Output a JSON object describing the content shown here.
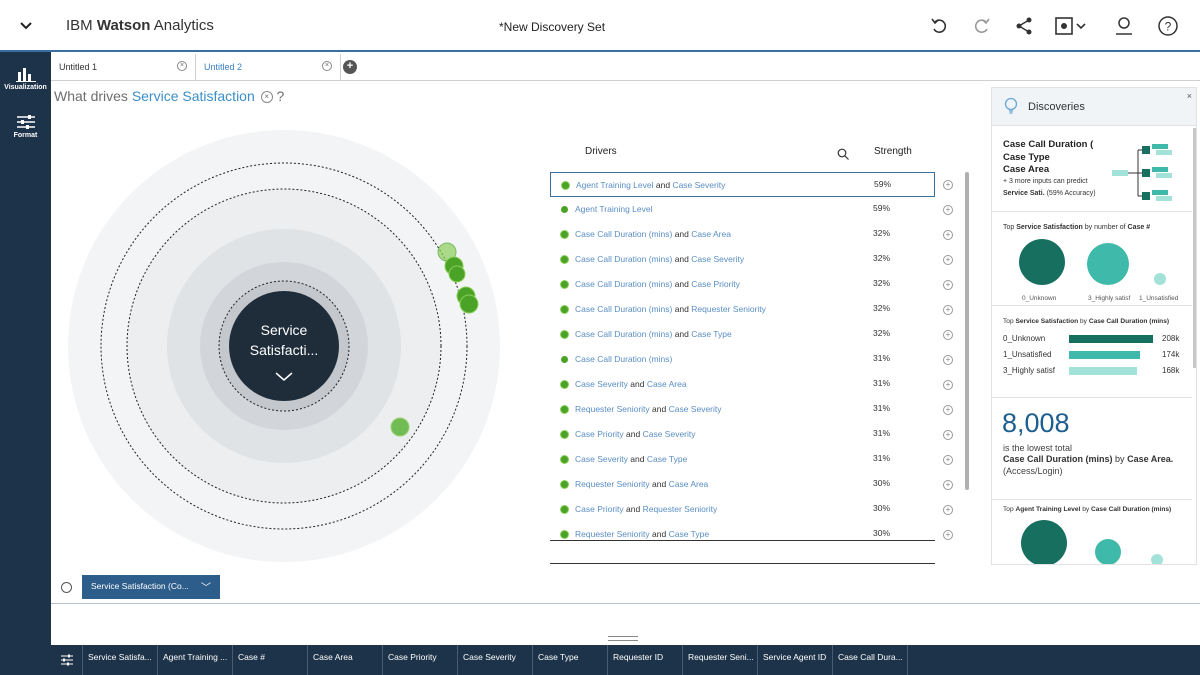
{
  "app": {
    "brand_prefix": "IBM",
    "brand_bold": "Watson",
    "brand_suffix": "Analytics",
    "doc_title": "*New Discovery Set"
  },
  "leftnav": {
    "items": [
      {
        "label": "Visualization",
        "icon": "bar-chart-icon"
      },
      {
        "label": "Format",
        "icon": "sliders-icon"
      }
    ]
  },
  "tabs": [
    {
      "label": "Untitled 1"
    },
    {
      "label": "Untitled 2"
    }
  ],
  "question": {
    "prefix": "What drives",
    "target": "Service Satisfaction",
    "help": "?"
  },
  "viz": {
    "center_line1": "Service",
    "center_line2": "Satisfacti..."
  },
  "drivers": {
    "header_drivers": "Drivers",
    "header_strength": "Strength",
    "rows": [
      {
        "a": "Agent Training Level",
        "b": "Case Severity",
        "pct": "59%"
      },
      {
        "a": "Agent Training Level",
        "b": "",
        "pct": "59%"
      },
      {
        "a": "Case Call Duration (mins)",
        "b": "Case Area",
        "pct": "32%"
      },
      {
        "a": "Case Call Duration (mins)",
        "b": "Case Severity",
        "pct": "32%"
      },
      {
        "a": "Case Call Duration (mins)",
        "b": "Case Priority",
        "pct": "32%"
      },
      {
        "a": "Case Call Duration (mins)",
        "b": "Requester Seniority",
        "pct": "32%"
      },
      {
        "a": "Case Call Duration (mins)",
        "b": "Case Type",
        "pct": "32%"
      },
      {
        "a": "Case Call Duration (mins)",
        "b": "",
        "pct": "31%"
      },
      {
        "a": "Case Severity",
        "b": "Case Area",
        "pct": "31%"
      },
      {
        "a": "Requester Seniority",
        "b": "Case Severity",
        "pct": "31%"
      },
      {
        "a": "Case Priority",
        "b": "Case Severity",
        "pct": "31%"
      },
      {
        "a": "Case Severity",
        "b": "Case Type",
        "pct": "31%"
      },
      {
        "a": "Requester Seniority",
        "b": "Case Area",
        "pct": "30%"
      },
      {
        "a": "Case Priority",
        "b": "Requester Seniority",
        "pct": "30%"
      },
      {
        "a": "Requester Seniority",
        "b": "Case Type",
        "pct": "30%"
      }
    ],
    "and_word": "and"
  },
  "discoveries": {
    "title": "Discoveries",
    "close": "×",
    "card1": {
      "line1": "Case Call Duration (",
      "line2": "Case Type",
      "line3": "Case Area",
      "line4": "+ 3 more inputs can predict",
      "line5_bold": "Service Sati.",
      "line5_rest": "(59% Accuracy)"
    },
    "card2": {
      "pre": "Top",
      "bold1": "Service Satisfaction",
      "mid": "by number of",
      "bold2": "Case #",
      "labels": [
        "0_Unknown",
        "3_Highly satisf",
        "1_Unsatisfied"
      ]
    },
    "card3": {
      "pre": "Top",
      "bold1": "Service Satisfaction",
      "mid": "by",
      "bold2": "Case Call Duration (mins)",
      "bars": [
        {
          "label": "0_Unknown",
          "value": "208k",
          "fraction": 1.0,
          "color": "#17705f"
        },
        {
          "label": "1_Unsatisfied",
          "value": "174k",
          "fraction": 0.84,
          "color": "#3fb9aa"
        },
        {
          "label": "3_Highly satisf",
          "value": "168k",
          "fraction": 0.81,
          "color": "#a2e2d9"
        }
      ]
    },
    "card4": {
      "big": "8,008",
      "line1": "is the lowest total",
      "bold1": "Case Call Duration (mins)",
      "by": "by",
      "bold2": "Case Area.",
      "line3": "(Access/Login)"
    },
    "card5": {
      "pre": "Top",
      "bold1": "Agent Training Level",
      "mid": "by",
      "bold2": "Case Call Duration (mins)"
    }
  },
  "pill": {
    "label": "Service Satisfaction (Co...",
    "chevron": "﹀"
  },
  "columns": [
    "Service Satisfa...",
    "Agent Training ...",
    "Case #",
    "Case Area",
    "Case Priority",
    "Case Severity",
    "Case Type",
    "Requester ID",
    "Requester Seni...",
    "Service Agent ID",
    "Case Call Dura..."
  ],
  "colors": {
    "nav_bg": "#1d3349",
    "accent": "#3b8ec8",
    "driver_green": "#4aa326",
    "teal_dark": "#17705f",
    "teal_mid": "#3fb9aa",
    "teal_light": "#a2e2d9"
  }
}
